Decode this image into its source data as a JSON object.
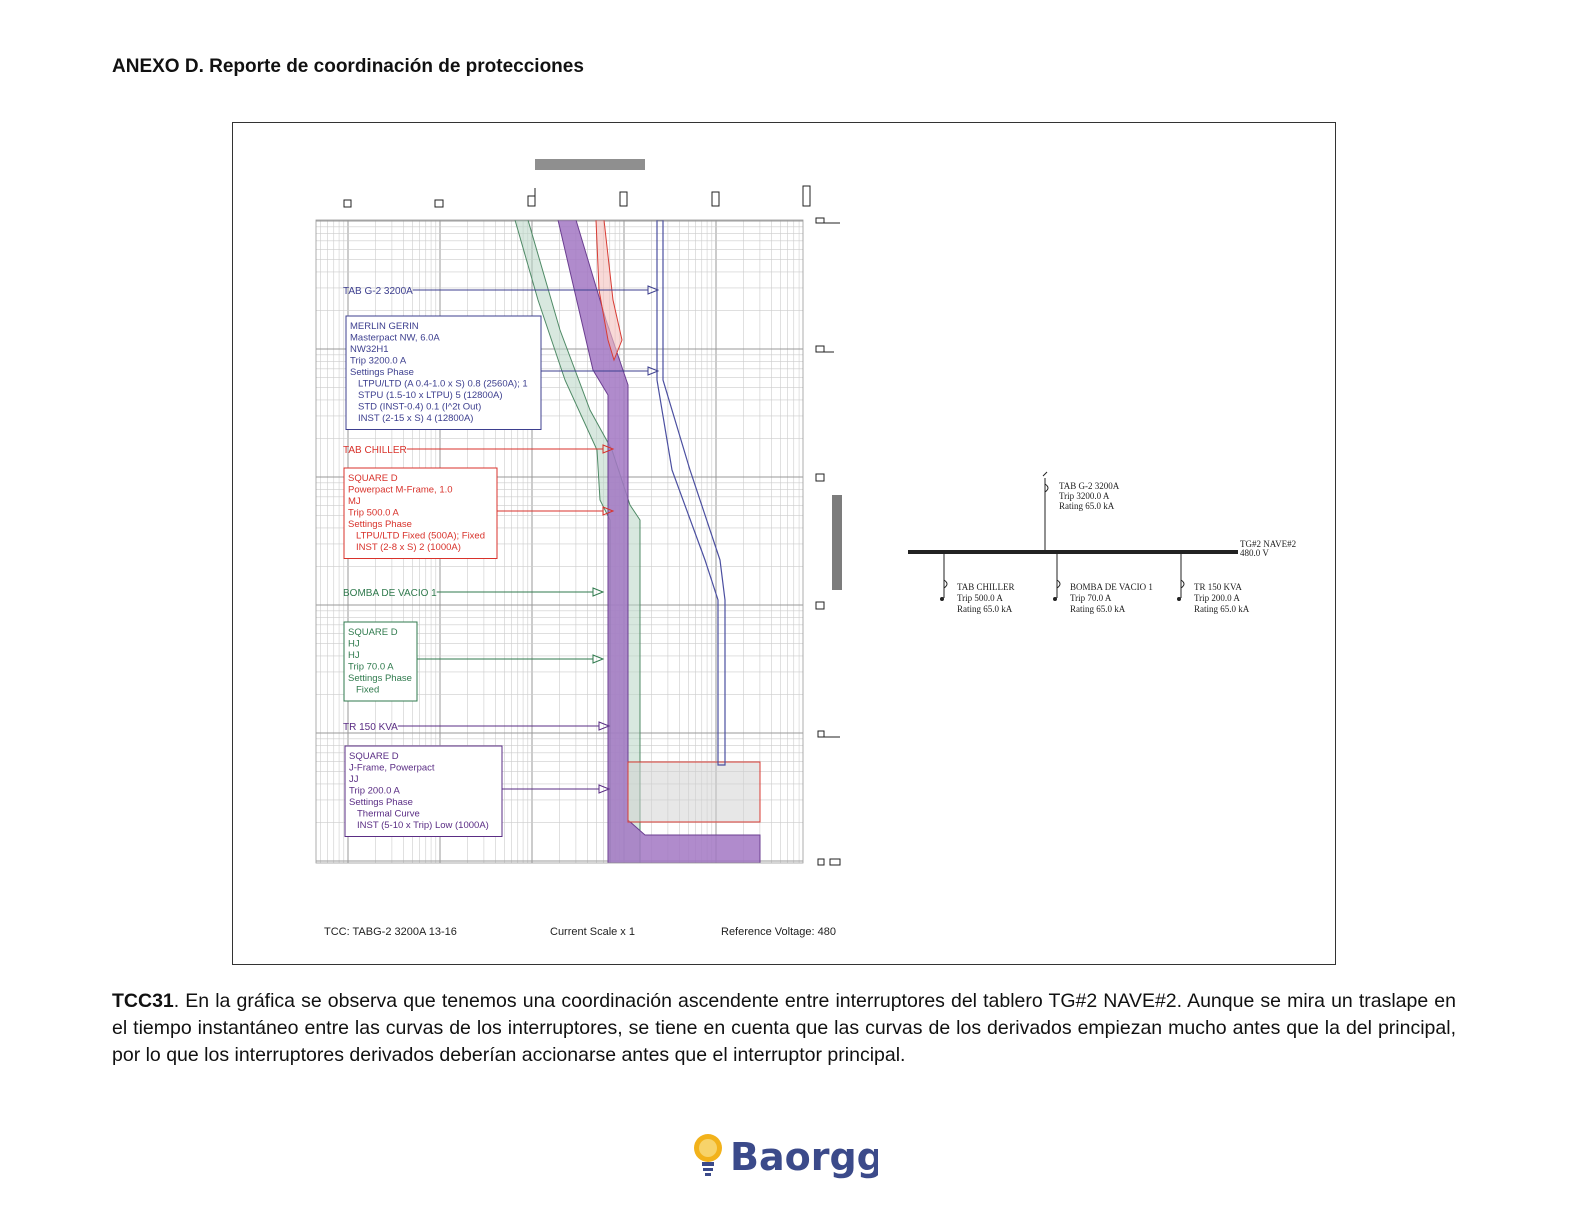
{
  "header": {
    "title": "ANEXO D. Reporte de coordinación de protecciones"
  },
  "figure": {
    "devices": [
      {
        "label": "TAB G-2 3200A",
        "box": [
          "MERLIN GERIN",
          "Masterpact NW, 6.0A",
          "NW32H1",
          "Trip 3200.0 A",
          "Settings Phase",
          "LTPU/LTD (A 0.4-1.0 x S) 0.8 (2560A); 1",
          "STPU (1.5-10 x LTPU) 5 (12800A)",
          "STD (INST-0.4) 0.1 (I^2t Out)",
          "INST (2-15 x S) 4 (12800A)"
        ]
      },
      {
        "label": "TAB CHILLER",
        "box": [
          "SQUARE D",
          "Powerpact M-Frame, 1.0",
          "MJ",
          "Trip 500.0 A",
          "Settings Phase",
          "LTPU/LTD Fixed (500A); Fixed",
          "INST (2-8 x S) 2 (1000A)"
        ]
      },
      {
        "label": "BOMBA DE VACIO 1",
        "box": [
          "SQUARE D",
          "HJ",
          "HJ",
          "Trip 70.0 A",
          "Settings Phase",
          "Fixed"
        ]
      },
      {
        "label": "TR 150 KVA",
        "box": [
          "SQUARE D",
          "J-Frame, Powerpact",
          "JJ",
          "Trip 200.0 A",
          "Settings Phase",
          "Thermal Curve",
          "INST (5-10 x Trip) Low (1000A)"
        ]
      }
    ],
    "footer": [
      "TCC:  TABG-2 3200A 13-16",
      "Current Scale  x 1",
      "Reference Voltage: 480"
    ],
    "one_line": {
      "bus": [
        "TG#2 NAVE#2",
        "480.0 V"
      ],
      "main": [
        "TAB G-2 3200A",
        "Trip 3200.0 A",
        "Rating 65.0 kA"
      ],
      "branches": [
        [
          "TAB CHILLER",
          "Trip 500.0 A",
          "Rating 65.0 kA"
        ],
        [
          "BOMBA DE VACIO 1",
          "Trip 70.0 A",
          "Rating 65.0 kA"
        ],
        [
          "TR 150 KVA",
          "Trip 200.0 A",
          "Rating 65.0 kA"
        ]
      ]
    }
  },
  "caption": {
    "lead": "TCC31",
    "text": ". En la gráfica se observa que tenemos una coordinación ascendente entre interruptores del tablero TG#2 NAVE#2. Aunque se mira un traslape en el tiempo instantáneo entre las curvas de los interruptores, se tiene en cuenta que las curvas de los derivados empiezan mucho antes que la del principal, por lo que los interruptores derivados deberían accionarse antes que el interruptor principal."
  },
  "logo": {
    "text": "Baorgg"
  }
}
